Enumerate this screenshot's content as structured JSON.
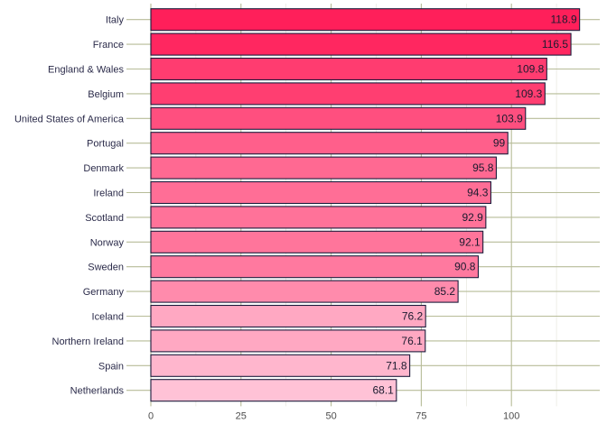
{
  "chart_data": {
    "type": "bar",
    "orientation": "horizontal",
    "categories": [
      "Italy",
      "France",
      "England & Wales",
      "Belgium",
      "United States of America",
      "Portugal",
      "Denmark",
      "Ireland",
      "Scotland",
      "Norway",
      "Sweden",
      "Germany",
      "Iceland",
      "Northern Ireland",
      "Spain",
      "Netherlands"
    ],
    "values": [
      118.9,
      116.5,
      109.8,
      109.3,
      103.9,
      99,
      95.8,
      94.3,
      92.9,
      92.1,
      90.8,
      85.2,
      76.2,
      76.1,
      71.8,
      68.1
    ],
    "value_labels": [
      "118.9",
      "116.5",
      "109.8",
      "109.3",
      "103.9",
      "99",
      "95.8",
      "94.3",
      "92.9",
      "92.1",
      "90.8",
      "85.2",
      "76.2",
      "76.1",
      "71.8",
      "68.1"
    ],
    "xticks": [
      0,
      25,
      50,
      75,
      100
    ],
    "xtick_labels": [
      "0",
      "25",
      "50",
      "75",
      "100"
    ],
    "xlim": [
      0,
      124.5
    ],
    "title": "",
    "xlabel": "",
    "ylabel": "",
    "grid": true,
    "legend": "none",
    "colors": {
      "bar_high": "#ff1f5a",
      "bar_low": "#ffc2d6",
      "bar_outline": "#1c1c3c",
      "grid_major": "#b7bc98",
      "grid_minor": "#e3e3d8"
    }
  }
}
